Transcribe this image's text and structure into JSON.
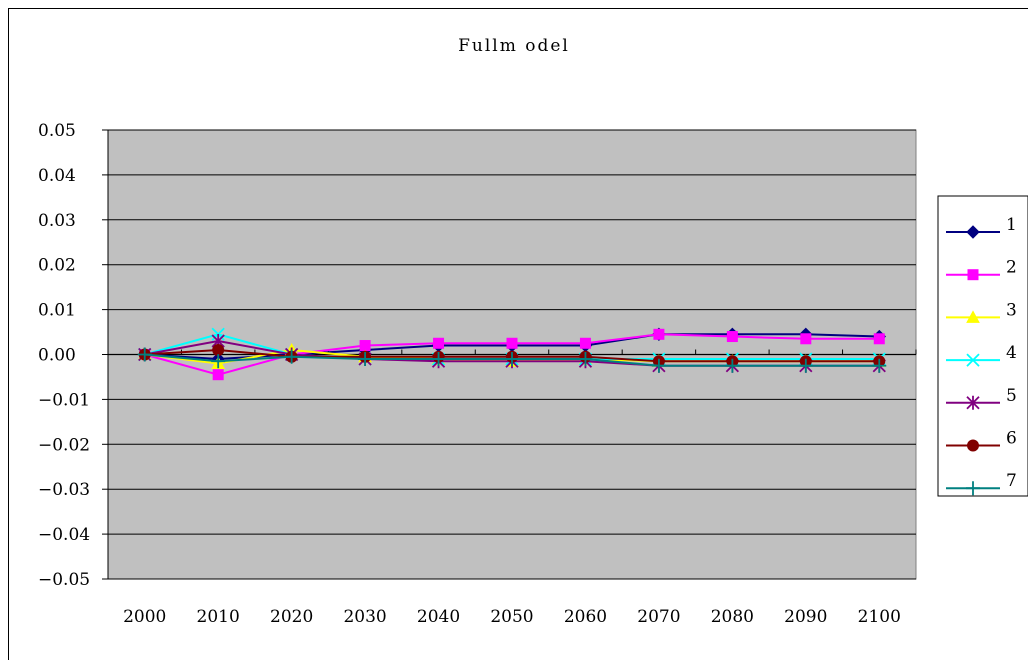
{
  "chart_data": {
    "type": "line",
    "title": "Fullm odel",
    "xlabel": "",
    "ylabel": "",
    "x": [
      "2000",
      "2010",
      "2020",
      "2030",
      "2040",
      "2050",
      "2060",
      "2070",
      "2080",
      "2090",
      "2100"
    ],
    "y_ticks": [
      "0.05",
      "0.04",
      "0.03",
      "0.02",
      "0.01",
      "0.00",
      "-0.01",
      "-0.02",
      "-0.03",
      "-0.04",
      "-0.05"
    ],
    "ylim": [
      -0.05,
      0.05
    ],
    "grid": true,
    "plot_background": "#c0c0c0",
    "legend_position": "right",
    "series": [
      {
        "name": "1",
        "color": "#000080",
        "marker": "diamond",
        "values": [
          0.0,
          -0.001,
          0.0,
          0.001,
          0.002,
          0.002,
          0.002,
          0.0045,
          0.0045,
          0.0045,
          0.004
        ]
      },
      {
        "name": "2",
        "color": "#ff00ff",
        "marker": "square",
        "values": [
          0.0,
          -0.0045,
          0.0,
          0.002,
          0.0025,
          0.0025,
          0.0025,
          0.0045,
          0.004,
          0.0035,
          0.0035
        ]
      },
      {
        "name": "3",
        "color": "#ffff00",
        "marker": "triangle",
        "values": [
          0.0,
          -0.002,
          0.001,
          -0.0005,
          -0.001,
          -0.0015,
          -0.001,
          -0.0015,
          -0.0015,
          -0.0015,
          -0.0015
        ]
      },
      {
        "name": "4",
        "color": "#00ffff",
        "marker": "x",
        "values": [
          0.0,
          0.0045,
          0.0,
          -0.001,
          -0.001,
          -0.001,
          -0.001,
          -0.001,
          -0.001,
          -0.001,
          -0.001
        ]
      },
      {
        "name": "5",
        "color": "#800080",
        "marker": "star",
        "values": [
          0.0,
          0.003,
          0.0,
          -0.001,
          -0.0015,
          -0.0015,
          -0.0015,
          -0.0025,
          -0.0025,
          -0.0025,
          -0.0025
        ]
      },
      {
        "name": "6",
        "color": "#800000",
        "marker": "circle",
        "values": [
          0.0,
          0.001,
          -0.0005,
          -0.0005,
          -0.0005,
          -0.0005,
          -0.0005,
          -0.0015,
          -0.0015,
          -0.0015,
          -0.0015
        ]
      },
      {
        "name": "7",
        "color": "#008080",
        "marker": "plus",
        "values": [
          0.0,
          -0.0015,
          -0.0005,
          -0.001,
          -0.001,
          -0.001,
          -0.001,
          -0.0025,
          -0.0025,
          -0.0025,
          -0.0025
        ]
      }
    ]
  }
}
